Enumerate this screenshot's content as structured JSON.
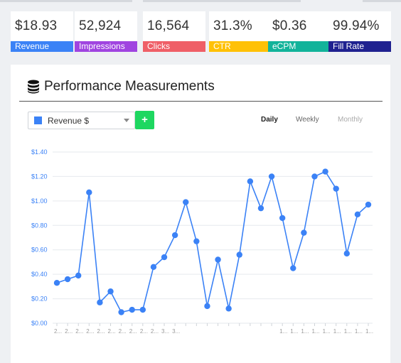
{
  "stats": [
    {
      "value": "$18.93",
      "label": "Revenue",
      "color": "#3b82f6"
    },
    {
      "value": "52,924",
      "label": "Impressions",
      "color": "#a044e0"
    },
    {
      "value": "16,564",
      "label": "Clicks",
      "color": "#ef5f67"
    },
    {
      "value": "31.3%",
      "label": "CTR",
      "color": "#ffc107"
    },
    {
      "value": "$0.36",
      "label": "eCPM",
      "color": "#12b39a"
    },
    {
      "value": "99.94%",
      "label": "Fill Rate",
      "color": "#1f2190"
    }
  ],
  "panel": {
    "title": "Performance Measurements",
    "title_icon": "database-icon",
    "metric_select": {
      "value": "Revenue $",
      "swatch_color": "#3b82f6"
    },
    "add_button": "+",
    "periods": [
      {
        "label": "Daily",
        "active": true
      },
      {
        "label": "Weekly",
        "active": false
      },
      {
        "label": "Monthly",
        "active": false
      }
    ]
  },
  "chart_data": {
    "type": "line",
    "series": [
      {
        "color": "#3b82f6",
        "values": [
          0.33,
          0.36,
          0.39,
          1.07,
          0.17,
          0.26,
          0.09,
          0.11,
          0.11,
          0.46,
          0.54,
          0.72,
          0.99,
          0.67,
          0.14,
          0.52,
          0.12,
          0.56,
          1.16,
          0.94,
          1.2,
          0.86,
          0.45,
          0.74,
          1.2,
          1.24,
          1.1,
          0.57,
          0.89,
          0.97
        ]
      }
    ],
    "x_tick_labels": [
      "2...",
      "2...",
      "2...",
      "2...",
      "2...",
      "2...",
      "2...",
      "2...",
      "2...",
      "2...",
      "3...",
      "3...",
      "",
      "",
      "",
      "",
      "",
      "",
      "",
      "",
      "",
      "1...",
      "1...",
      "1...",
      "1...",
      "1...",
      "1...",
      "1...",
      "1...",
      "1..."
    ],
    "y_ticks": [
      "$0.00",
      "$0.20",
      "$0.40",
      "$0.60",
      "$0.80",
      "$1.00",
      "$1.20",
      "$1.40"
    ],
    "ylim": [
      0,
      1.4
    ],
    "grid": true
  }
}
